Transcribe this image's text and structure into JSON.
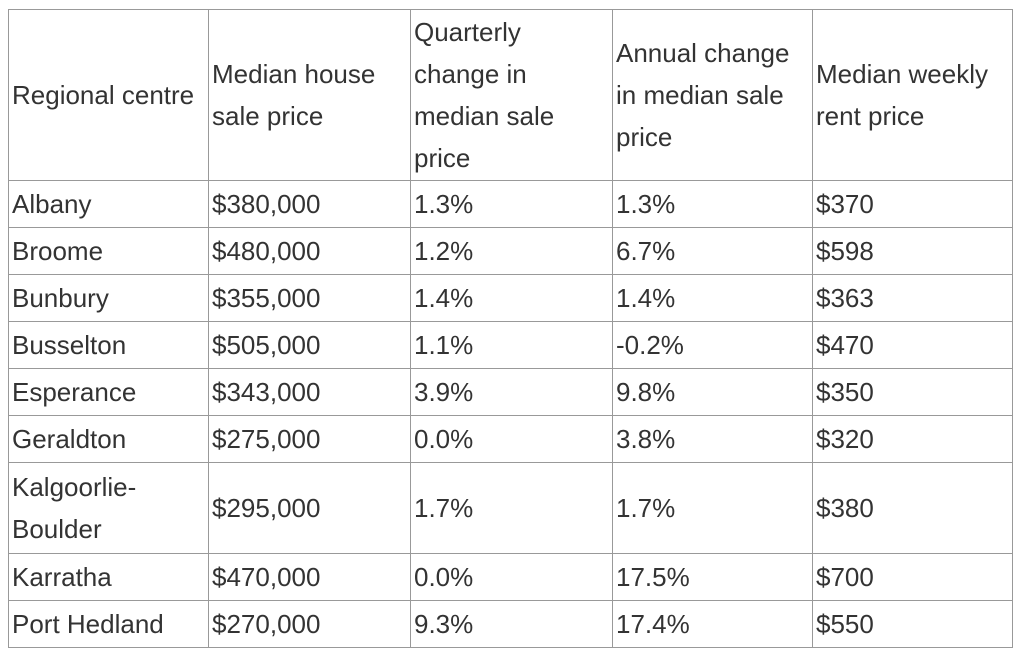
{
  "table": {
    "headers": [
      "Regional centre",
      "Median house sale price",
      "Quarterly change in median sale price",
      "Annual change in median sale price",
      "Median weekly rent price"
    ],
    "rows": [
      [
        "Albany",
        "$380,000",
        "1.3%",
        "1.3%",
        "$370"
      ],
      [
        "Broome",
        "$480,000",
        "1.2%",
        "6.7%",
        "$598"
      ],
      [
        "Bunbury",
        "$355,000",
        "1.4%",
        "1.4%",
        "$363"
      ],
      [
        "Busselton",
        "$505,000",
        "1.1%",
        "-0.2%",
        "$470"
      ],
      [
        "Esperance",
        "$343,000",
        "3.9%",
        "9.8%",
        "$350"
      ],
      [
        "Geraldton",
        "$275,000",
        "0.0%",
        "3.8%",
        "$320"
      ],
      [
        "Kalgoorlie-Boulder",
        "$295,000",
        "1.7%",
        "1.7%",
        "$380"
      ],
      [
        "Karratha",
        "$470,000",
        "0.0%",
        "17.5%",
        "$700"
      ],
      [
        "Port Hedland",
        "$270,000",
        "9.3%",
        "17.4%",
        "$550"
      ]
    ]
  }
}
